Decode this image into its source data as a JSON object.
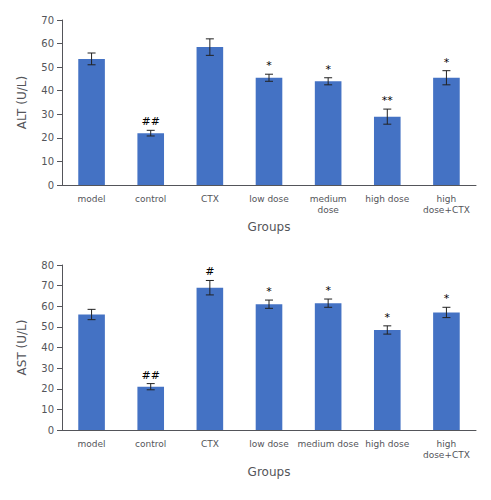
{
  "chart_data": [
    {
      "type": "bar",
      "categories": [
        "model",
        "control",
        "CTX",
        "low dose",
        "medium\ndose",
        "high dose",
        "high\ndose+CTX"
      ],
      "values": [
        53.5,
        22.0,
        58.5,
        45.5,
        44.0,
        29.0,
        45.5
      ],
      "errors": [
        2.5,
        1.2,
        3.5,
        1.5,
        1.5,
        3.2,
        3.0
      ],
      "annotations": [
        null,
        "##",
        null,
        "*",
        "*",
        "**",
        "*"
      ],
      "ylabel": "ALT (U/L)",
      "xlabel": "Groups",
      "ylim": [
        0,
        70
      ],
      "yticks": [
        0,
        10,
        20,
        30,
        40,
        50,
        60,
        70
      ],
      "color": "#4472C4",
      "grid": false
    },
    {
      "type": "bar",
      "categories": [
        "model",
        "control",
        "CTX",
        "low dose",
        "medium dose",
        "high dose",
        "high\ndose+CTX"
      ],
      "values": [
        56.0,
        21.0,
        69.0,
        61.0,
        61.5,
        48.5,
        57.0
      ],
      "errors": [
        2.5,
        1.5,
        3.5,
        2.0,
        2.0,
        2.0,
        2.5
      ],
      "annotations": [
        null,
        "##",
        "#",
        "*",
        "*",
        "*",
        "*"
      ],
      "ylabel": "AST (U/L)",
      "xlabel": "Groups",
      "ylim": [
        0,
        80
      ],
      "yticks": [
        0,
        10,
        20,
        30,
        40,
        50,
        60,
        70,
        80
      ],
      "color": "#4472C4",
      "grid": false
    }
  ]
}
